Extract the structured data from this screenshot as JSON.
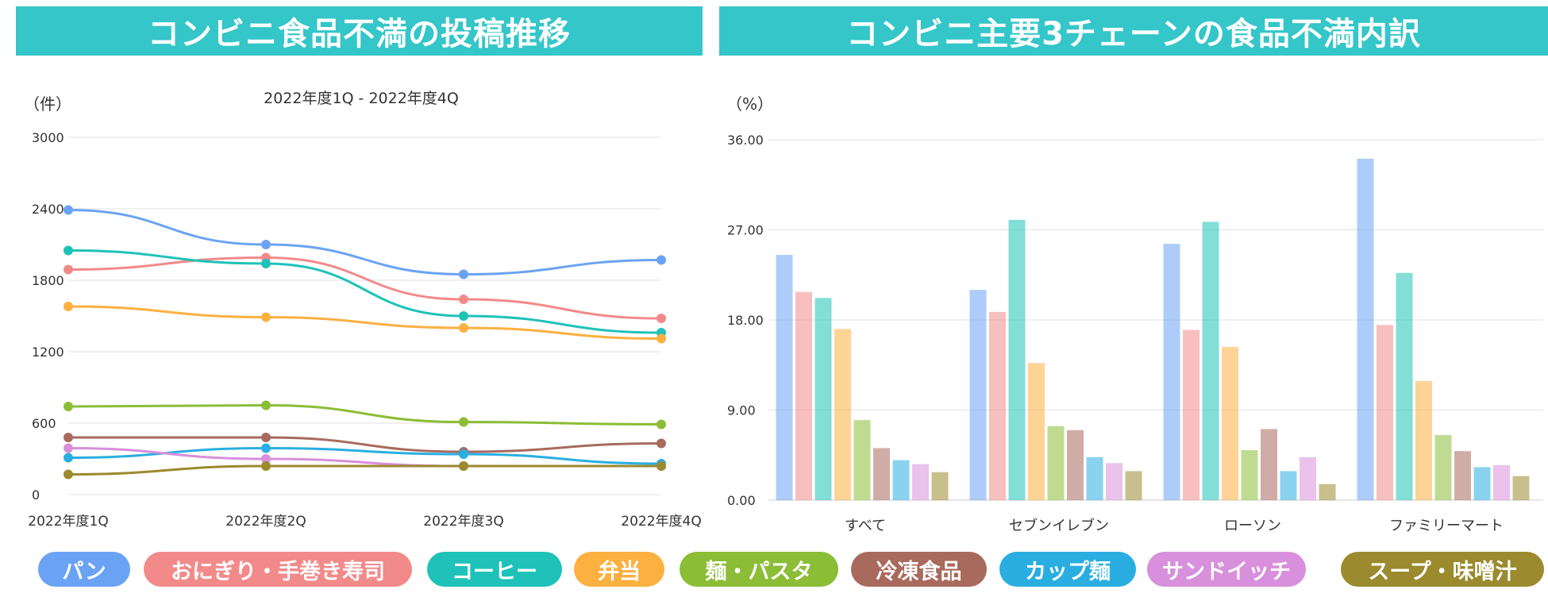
{
  "left_title": "コンビニ食品不満の投稿推移",
  "right_title": "コンビニ主要3チェーンの食品不満内訳",
  "legend": [
    {
      "label": "パン",
      "color": "#6aa3f4"
    },
    {
      "label": "おにぎり・手巻き寿司",
      "color": "#f28a8a"
    },
    {
      "label": "コーヒー",
      "color": "#1fc2b8"
    },
    {
      "label": "弁当",
      "color": "#fbb040"
    },
    {
      "label": "麺・パスタ",
      "color": "#8bbd36"
    },
    {
      "label": "冷凍食品",
      "color": "#a86a5d"
    },
    {
      "label": "カップ麺",
      "color": "#2aaee1"
    },
    {
      "label": "サンドイッチ",
      "color": "#d88fdc"
    },
    {
      "label": "スープ・味噌汁",
      "color": "#9b8a2e"
    }
  ],
  "chart_data": [
    {
      "type": "line",
      "title": "2022年度1Q - 2022年度4Q",
      "ylabel": "（件）",
      "categories": [
        "2022年度1Q",
        "2022年度2Q",
        "2022年度3Q",
        "2022年度4Q"
      ],
      "yticks": [
        "0",
        "600",
        "1200",
        "1800",
        "2400",
        "3000"
      ],
      "ylim": [
        0,
        3000
      ],
      "series": [
        {
          "name": "パン",
          "color": "#6aa3f4",
          "values": [
            2390,
            2100,
            1850,
            1970
          ]
        },
        {
          "name": "おにぎり・手巻き寿司",
          "color": "#f28a8a",
          "values": [
            1890,
            1990,
            1640,
            1480
          ]
        },
        {
          "name": "コーヒー",
          "color": "#1fc2b8",
          "values": [
            2050,
            1940,
            1500,
            1360
          ]
        },
        {
          "name": "弁当",
          "color": "#fbb040",
          "values": [
            1580,
            1490,
            1400,
            1310
          ]
        },
        {
          "name": "麺・パスタ",
          "color": "#8bbd36",
          "values": [
            740,
            750,
            610,
            590
          ]
        },
        {
          "name": "冷凍食品",
          "color": "#a86a5d",
          "values": [
            480,
            480,
            360,
            430
          ]
        },
        {
          "name": "カップ麺",
          "color": "#2aaee1",
          "values": [
            310,
            390,
            340,
            260
          ]
        },
        {
          "name": "サンドイッチ",
          "color": "#d88fdc",
          "values": [
            390,
            300,
            240,
            240
          ]
        },
        {
          "name": "スープ・味噌汁",
          "color": "#9b8a2e",
          "values": [
            170,
            240,
            240,
            240
          ]
        }
      ]
    },
    {
      "type": "bar",
      "title": "",
      "ylabel": "（%）",
      "categories": [
        "すべて",
        "セブンイレブン",
        "ローソン",
        "ファミリーマート"
      ],
      "yticks": [
        "0.00",
        "9.00",
        "18.00",
        "27.00",
        "36.00"
      ],
      "ylim": [
        0,
        36
      ],
      "series": [
        {
          "name": "パン",
          "color": "#6aa3f4",
          "values": [
            24.5,
            21.0,
            25.6,
            34.1
          ]
        },
        {
          "name": "おにぎり・手巻き寿司",
          "color": "#f28a8a",
          "values": [
            20.8,
            18.8,
            17.0,
            17.5
          ]
        },
        {
          "name": "コーヒー",
          "color": "#1fc2b8",
          "values": [
            20.2,
            28.0,
            27.8,
            22.7
          ]
        },
        {
          "name": "弁当",
          "color": "#fbb040",
          "values": [
            17.1,
            13.7,
            15.3,
            11.9
          ]
        },
        {
          "name": "麺・パスタ",
          "color": "#8bbd36",
          "values": [
            8.0,
            7.4,
            5.0,
            6.5
          ]
        },
        {
          "name": "冷凍食品",
          "color": "#a86a5d",
          "values": [
            5.2,
            7.0,
            7.1,
            4.9
          ]
        },
        {
          "name": "カップ麺",
          "color": "#2aaee1",
          "values": [
            4.0,
            4.3,
            2.9,
            3.3
          ]
        },
        {
          "name": "サンドイッチ",
          "color": "#d88fdc",
          "values": [
            3.6,
            3.7,
            4.3,
            3.5
          ]
        },
        {
          "name": "スープ・味噌汁",
          "color": "#9b8a2e",
          "values": [
            2.8,
            2.9,
            1.6,
            2.4
          ]
        }
      ]
    }
  ]
}
